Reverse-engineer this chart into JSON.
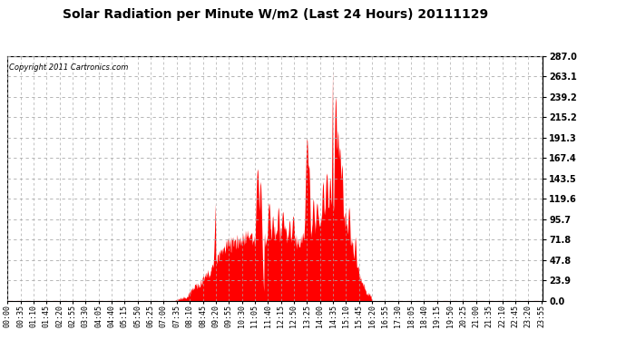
{
  "title": "Solar Radiation per Minute W/m2 (Last 24 Hours) 20111129",
  "copyright": "Copyright 2011 Cartronics.com",
  "y_ticks": [
    0.0,
    23.9,
    47.8,
    71.8,
    95.7,
    119.6,
    143.5,
    167.4,
    191.3,
    215.2,
    239.2,
    263.1,
    287.0
  ],
  "y_max": 287.0,
  "bar_color": "#ff0000",
  "bg_color": "#ffffff",
  "x_labels": [
    "00:00",
    "00:35",
    "01:10",
    "01:45",
    "02:20",
    "02:55",
    "03:30",
    "04:05",
    "04:40",
    "05:15",
    "05:50",
    "06:25",
    "07:00",
    "07:35",
    "08:10",
    "08:45",
    "09:20",
    "09:55",
    "10:30",
    "11:05",
    "11:40",
    "12:15",
    "12:50",
    "13:25",
    "14:00",
    "14:35",
    "15:10",
    "15:45",
    "16:20",
    "16:55",
    "17:30",
    "18:05",
    "18:40",
    "19:15",
    "19:50",
    "20:25",
    "21:00",
    "21:35",
    "22:10",
    "22:45",
    "23:20",
    "23:55"
  ],
  "title_fontsize": 10,
  "copyright_fontsize": 6,
  "tick_fontsize": 6
}
